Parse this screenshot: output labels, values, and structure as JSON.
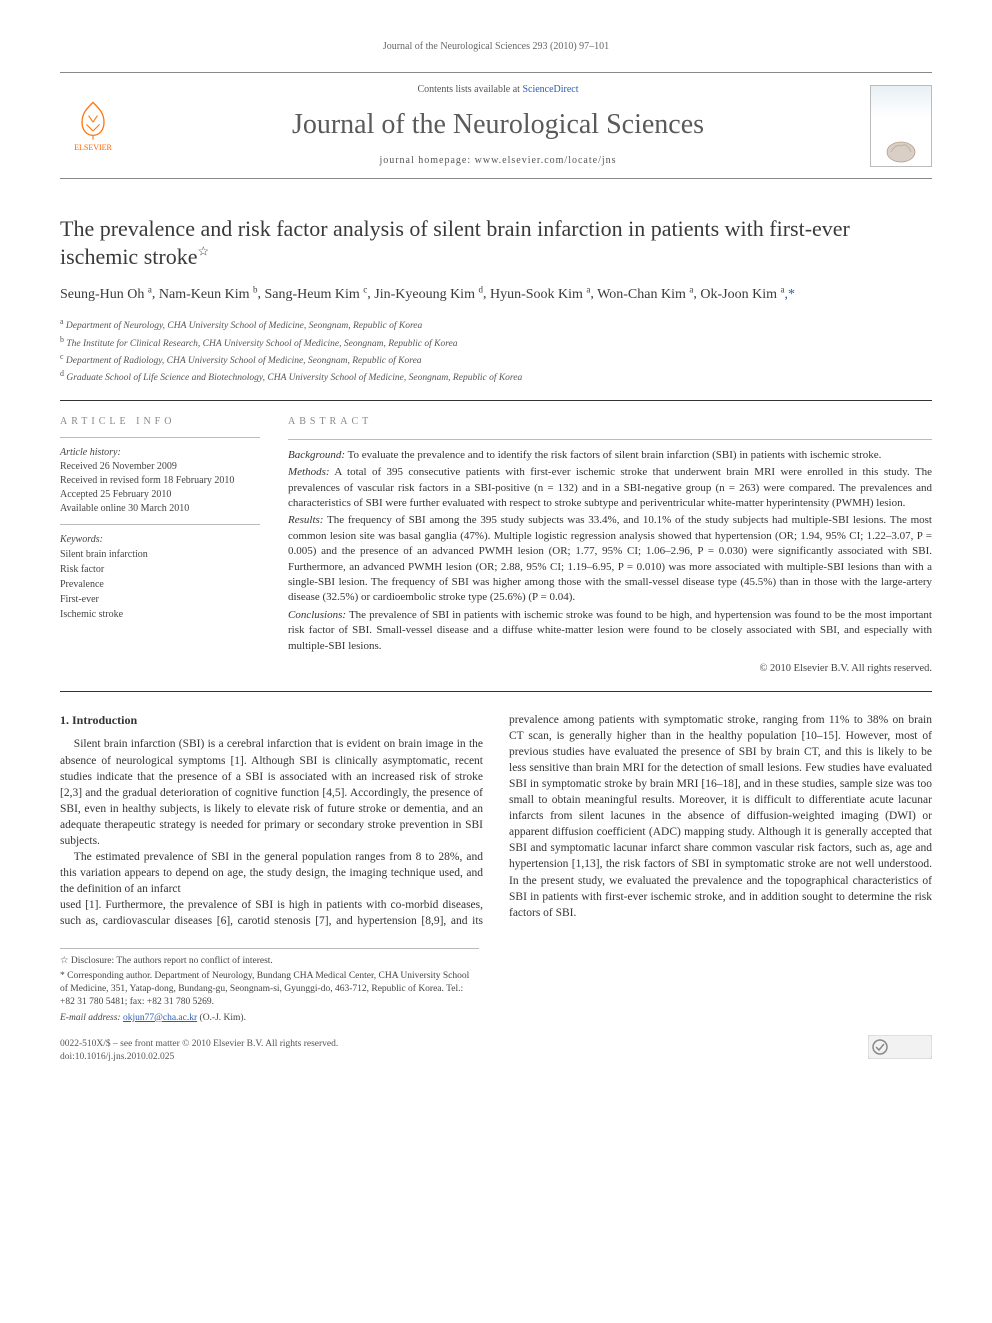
{
  "running_head": "Journal of the Neurological Sciences 293 (2010) 97–101",
  "banner": {
    "contents_prefix": "Contents lists available at ",
    "contents_link": "ScienceDirect",
    "journal_name": "Journal of the Neurological Sciences",
    "homepage_label": "journal homepage: ",
    "homepage_url": "www.elsevier.com/locate/jns",
    "publisher": "ELSEVIER"
  },
  "title": "The prevalence and risk factor analysis of silent brain infarction in patients with first-ever ischemic stroke",
  "title_note_marker": "☆",
  "authors_line": "Seung-Hun Oh ᵃ, Nam-Keun Kim ᵇ, Sang-Heum Kim ᶜ, Jin-Kyeoung Kim ᵈ, Hyun-Sook Kim ᵃ, Won-Chan Kim ᵃ, Ok-Joon Kim ᵃ,*",
  "authors": [
    {
      "name": "Seung-Hun Oh",
      "aff": "a"
    },
    {
      "name": "Nam-Keun Kim",
      "aff": "b"
    },
    {
      "name": "Sang-Heum Kim",
      "aff": "c"
    },
    {
      "name": "Jin-Kyeoung Kim",
      "aff": "d"
    },
    {
      "name": "Hyun-Sook Kim",
      "aff": "a"
    },
    {
      "name": "Won-Chan Kim",
      "aff": "a"
    },
    {
      "name": "Ok-Joon Kim",
      "aff": "a",
      "corr": true
    }
  ],
  "affiliations": [
    {
      "key": "a",
      "text": "Department of Neurology, CHA University School of Medicine, Seongnam, Republic of Korea"
    },
    {
      "key": "b",
      "text": "The Institute for Clinical Research, CHA University School of Medicine, Seongnam, Republic of Korea"
    },
    {
      "key": "c",
      "text": "Department of Radiology, CHA University School of Medicine, Seongnam, Republic of Korea"
    },
    {
      "key": "d",
      "text": "Graduate School of Life Science and Biotechnology, CHA University School of Medicine, Seongnam, Republic of Korea"
    }
  ],
  "article_info_heading": "ARTICLE INFO",
  "abstract_heading": "ABSTRACT",
  "history": {
    "label": "Article history:",
    "received": "Received 26 November 2009",
    "revised": "Received in revised form 18 February 2010",
    "accepted": "Accepted 25 February 2010",
    "online": "Available online 30 March 2010"
  },
  "keywords_label": "Keywords:",
  "keywords": [
    "Silent brain infarction",
    "Risk factor",
    "Prevalence",
    "First-ever",
    "Ischemic stroke"
  ],
  "abstract": {
    "background_label": "Background:",
    "background": "To evaluate the prevalence and to identify the risk factors of silent brain infarction (SBI) in patients with ischemic stroke.",
    "methods_label": "Methods:",
    "methods": "A total of 395 consecutive patients with first-ever ischemic stroke that underwent brain MRI were enrolled in this study. The prevalences of vascular risk factors in a SBI-positive (n = 132) and in a SBI-negative group (n = 263) were compared. The prevalences and characteristics of SBI were further evaluated with respect to stroke subtype and periventricular white-matter hyperintensity (PWMH) lesion.",
    "results_label": "Results:",
    "results": "The frequency of SBI among the 395 study subjects was 33.4%, and 10.1% of the study subjects had multiple-SBI lesions. The most common lesion site was basal ganglia (47%). Multiple logistic regression analysis showed that hypertension (OR; 1.94, 95% CI; 1.22–3.07, P = 0.005) and the presence of an advanced PWMH lesion (OR; 1.77, 95% CI; 1.06–2.96, P = 0.030) were significantly associated with SBI. Furthermore, an advanced PWMH lesion (OR; 2.88, 95% CI; 1.19–6.95, P = 0.010) was more associated with multiple-SBI lesions than with a single-SBI lesion. The frequency of SBI was higher among those with the small-vessel disease type (45.5%) than in those with the large-artery disease (32.5%) or cardioembolic stroke type (25.6%) (P = 0.04).",
    "conclusions_label": "Conclusions:",
    "conclusions": "The prevalence of SBI in patients with ischemic stroke was found to be high, and hypertension was found to be the most important risk factor of SBI. Small-vessel disease and a diffuse white-matter lesion were found to be closely associated with SBI, and especially with multiple-SBI lesions."
  },
  "copyright": "© 2010 Elsevier B.V. All rights reserved.",
  "intro_heading": "1. Introduction",
  "intro_p1": "Silent brain infarction (SBI) is a cerebral infarction that is evident on brain image in the absence of neurological symptoms [1]. Although SBI is clinically asymptomatic, recent studies indicate that the presence of a SBI is associated with an increased risk of stroke [2,3] and the gradual deterioration of cognitive function [4,5]. Accordingly, the presence of SBI, even in healthy subjects, is likely to elevate risk of future stroke or dementia, and an adequate therapeutic strategy is needed for primary or secondary stroke prevention in SBI subjects.",
  "intro_p2": "The estimated prevalence of SBI in the general population ranges from 8 to 28%, and this variation appears to depend on age, the study design, the imaging technique used, and the definition of an infarct",
  "intro_p3": "used [1]. Furthermore, the prevalence of SBI is high in patients with co-morbid diseases, such as, cardiovascular diseases [6], carotid stenosis [7], and hypertension [8,9], and its prevalence among patients with symptomatic stroke, ranging from 11% to 38% on brain CT scan, is generally higher than in the healthy population [10–15]. However, most of previous studies have evaluated the presence of SBI by brain CT, and this is likely to be less sensitive than brain MRI for the detection of small lesions. Few studies have evaluated SBI in symptomatic stroke by brain MRI [16–18], and in these studies, sample size was too small to obtain meaningful results. Moreover, it is difficult to differentiate acute lacunar infarcts from silent lacunes in the absence of diffusion-weighted imaging (DWI) or apparent diffusion coefficient (ADC) mapping study. Although it is generally accepted that SBI and symptomatic lacunar infarct share common vascular risk factors, such as, age and hypertension [1,13], the risk factors of SBI in symptomatic stroke are not well understood. In the present study, we evaluated the prevalence and the topographical characteristics of SBI in patients with first-ever ischemic stroke, and in addition sought to determine the risk factors of SBI.",
  "footnotes": {
    "disclosure": "☆ Disclosure: The authors report no conflict of interest.",
    "corr": "* Corresponding author. Department of Neurology, Bundang CHA Medical Center, CHA University School of Medicine, 351, Yatap-dong, Bundang-gu, Seongnam-si, Gyunggi-do, 463-712, Republic of Korea. Tel.: +82 31 780 5481; fax: +82 31 780 5269.",
    "email_label": "E-mail address: ",
    "email": "okjun77@cha.ac.kr",
    "email_suffix": " (O.-J. Kim)."
  },
  "footer": {
    "issn_line": "0022-510X/$ – see front matter © 2010 Elsevier B.V. All rights reserved.",
    "doi_line": "doi:10.1016/j.jns.2010.02.025"
  },
  "colors": {
    "link": "#2a5db0",
    "text": "#333333",
    "muted": "#666666",
    "rule": "#bbbbbb",
    "elsevier_orange": "#ff6600"
  }
}
